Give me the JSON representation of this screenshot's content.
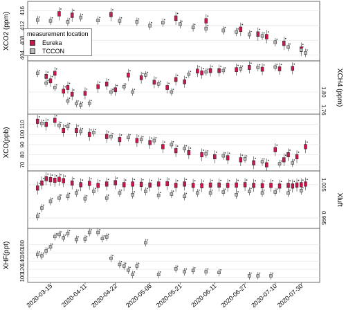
{
  "chart_data": [
    {
      "type": "box",
      "ylabel": "XCO2 (ppm)",
      "ylabel_side": "left",
      "y_ticks": [
        "404",
        "408",
        "412",
        "416"
      ],
      "ylim": [
        403,
        418
      ],
      "x_ticks": [
        "2020-03-15",
        "2020-04-11",
        "2020-04-22",
        "2020-05-06",
        "2020-05-21",
        "2020-06-11",
        "2020-06-27",
        "2020-07-10",
        "2020-07-30"
      ],
      "legend": {
        "title": "measurement location",
        "position": "top-left",
        "entries": [
          {
            "name": "Eureka",
            "color": "#c8174a"
          },
          {
            "name": "TCCON",
            "color": "#b8b8b8"
          }
        ]
      },
      "series": [
        {
          "name": "Eureka",
          "x": [
            6,
            9,
            18,
            33,
            40,
            48,
            52,
            54,
            58,
            62
          ],
          "y": [
            415.2,
            414.8,
            415.0,
            414.0,
            413.3,
            411.0,
            409.7,
            409.0,
            407.2,
            405.6
          ]
        },
        {
          "name": "TCCON",
          "x": [
            1,
            4,
            8,
            11,
            15,
            20,
            24,
            27,
            30,
            34,
            37,
            40,
            44,
            47,
            50,
            53,
            56,
            59,
            62,
            63
          ],
          "y": [
            413.5,
            413.3,
            413.0,
            414.2,
            413.4,
            413.3,
            413.0,
            412.0,
            412.8,
            412.4,
            411.5,
            411.2,
            410.7,
            410.3,
            409.6,
            409.2,
            407.5,
            406.2,
            405.4,
            404.6
          ]
        }
      ]
    },
    {
      "type": "box",
      "ylabel": "XCH4 (ppm)",
      "ylabel_side": "right",
      "y_ticks": [
        "1.76",
        "1.80"
      ],
      "ylim": [
        1.755,
        1.865
      ],
      "series": [
        {
          "name": "Eureka",
          "x": [
            3,
            4,
            5,
            7,
            8,
            9,
            12,
            15,
            17,
            19,
            22,
            25,
            28,
            31,
            33,
            35,
            38,
            39,
            41,
            43,
            47,
            50,
            53,
            57,
            60
          ],
          "y": [
            1.835,
            1.825,
            1.842,
            1.802,
            1.81,
            1.795,
            1.797,
            1.812,
            1.818,
            1.805,
            1.838,
            1.832,
            1.822,
            1.81,
            1.828,
            1.823,
            1.847,
            1.843,
            1.848,
            1.848,
            1.85,
            1.855,
            1.851,
            1.852,
            1.853
          ]
        },
        {
          "name": "TCCON",
          "x": [
            1,
            3,
            5,
            8,
            10,
            11,
            13,
            18,
            21,
            23,
            26,
            29,
            32,
            36,
            40,
            44,
            48,
            52,
            56
          ],
          "y": [
            1.842,
            1.82,
            1.81,
            1.78,
            1.774,
            1.771,
            1.775,
            1.8,
            1.812,
            1.8,
            1.838,
            1.818,
            1.8,
            1.84,
            1.845,
            1.848,
            1.852,
            1.855,
            1.856
          ]
        }
      ]
    },
    {
      "type": "box",
      "ylabel": "XCO(ppb)",
      "ylabel_side": "left",
      "y_ticks": [
        "70",
        "80",
        "90",
        "100",
        "110"
      ],
      "ylim": [
        66,
        118
      ],
      "series": [
        {
          "name": "Eureka",
          "x": [
            1,
            3,
            5,
            7,
            10,
            13,
            17,
            20,
            24,
            27,
            30,
            33,
            36,
            39,
            42,
            45,
            48,
            51,
            54,
            56,
            58,
            59,
            61,
            63
          ],
          "y": [
            113,
            110,
            114,
            104,
            104,
            100,
            98,
            95,
            94,
            92,
            88,
            84,
            82,
            80,
            78,
            77,
            75,
            72,
            70,
            85,
            75,
            80,
            78,
            88
          ]
        },
        {
          "name": "TCCON",
          "x": [
            2,
            6,
            8,
            11,
            14,
            18,
            22,
            25,
            28,
            32,
            35,
            40,
            44,
            49,
            53,
            57,
            60
          ],
          "y": [
            111,
            109,
            108,
            103,
            102,
            98,
            97,
            95,
            94,
            90,
            86,
            81,
            79,
            76,
            73,
            71,
            72
          ]
        }
      ]
    },
    {
      "type": "box",
      "ylabel": "Xluft",
      "ylabel_side": "right",
      "y_ticks": [
        "0.995",
        "1.005"
      ],
      "ylim": [
        0.9925,
        1.0085
      ],
      "series": [
        {
          "name": "Eureka",
          "x": [
            1,
            2,
            3,
            4,
            5,
            6,
            7,
            9,
            11,
            13,
            15,
            17,
            19,
            21,
            23,
            25,
            27,
            29,
            31,
            33,
            35,
            37,
            39,
            41,
            43,
            45,
            47,
            49,
            51,
            53,
            55,
            57,
            59,
            60,
            61,
            62,
            63
          ],
          "y": [
            1.004,
            1.0055,
            1.0068,
            1.0065,
            1.0063,
            1.0066,
            1.0062,
            1.0055,
            1.005,
            1.0054,
            1.0048,
            1.0052,
            1.0056,
            1.005,
            1.0052,
            1.0051,
            1.0049,
            1.0052,
            1.0053,
            1.0048,
            1.0052,
            1.0048,
            1.0047,
            1.0049,
            1.0049,
            1.0048,
            1.0049,
            1.005,
            1.0048,
            1.0047,
            1.0048,
            1.0046,
            1.0048,
            1.0046,
            1.0049,
            1.005,
            1.0052
          ]
        },
        {
          "name": "TCCON",
          "x": [
            1,
            2,
            4,
            6,
            8,
            10,
            12,
            14,
            17,
            20,
            23,
            26,
            29,
            32,
            35,
            38,
            41,
            44,
            47,
            50,
            53,
            56,
            59,
            62
          ],
          "y": [
            0.9955,
            0.998,
            1.0,
            1.001,
            1.0015,
            1.0025,
            1.0008,
            1.003,
            1.001,
            1.0025,
            1.002,
            1.003,
            1.0018,
            1.0022,
            1.0015,
            1.0025,
            1.0025,
            1.0028,
            1.002,
            1.003,
            1.0025,
            1.0028,
            1.0025,
            1.0032
          ]
        }
      ]
    },
    {
      "type": "box",
      "ylabel": "XHF(ppt)",
      "ylabel_side": "left",
      "y_ticks": [
        "100",
        "120",
        "140",
        "160",
        "180"
      ],
      "ylim": [
        93,
        215
      ],
      "series": [
        {
          "name": "TCCON",
          "x": [
            1,
            2,
            3,
            4,
            5,
            6,
            7,
            8,
            10,
            12,
            13,
            15,
            16,
            17,
            18,
            20,
            21,
            22,
            23,
            24,
            26,
            29,
            33,
            35,
            37,
            40,
            43,
            50,
            52,
            55
          ],
          "y": [
            156,
            153,
            165,
            175,
            200,
            205,
            197,
            208,
            193,
            194,
            210,
            210,
            195,
            199,
            147,
            132,
            128,
            118,
            107,
            128,
            185,
            107,
            121,
            114,
            117,
            114,
            112,
            104,
            104,
            104
          ]
        }
      ]
    }
  ]
}
